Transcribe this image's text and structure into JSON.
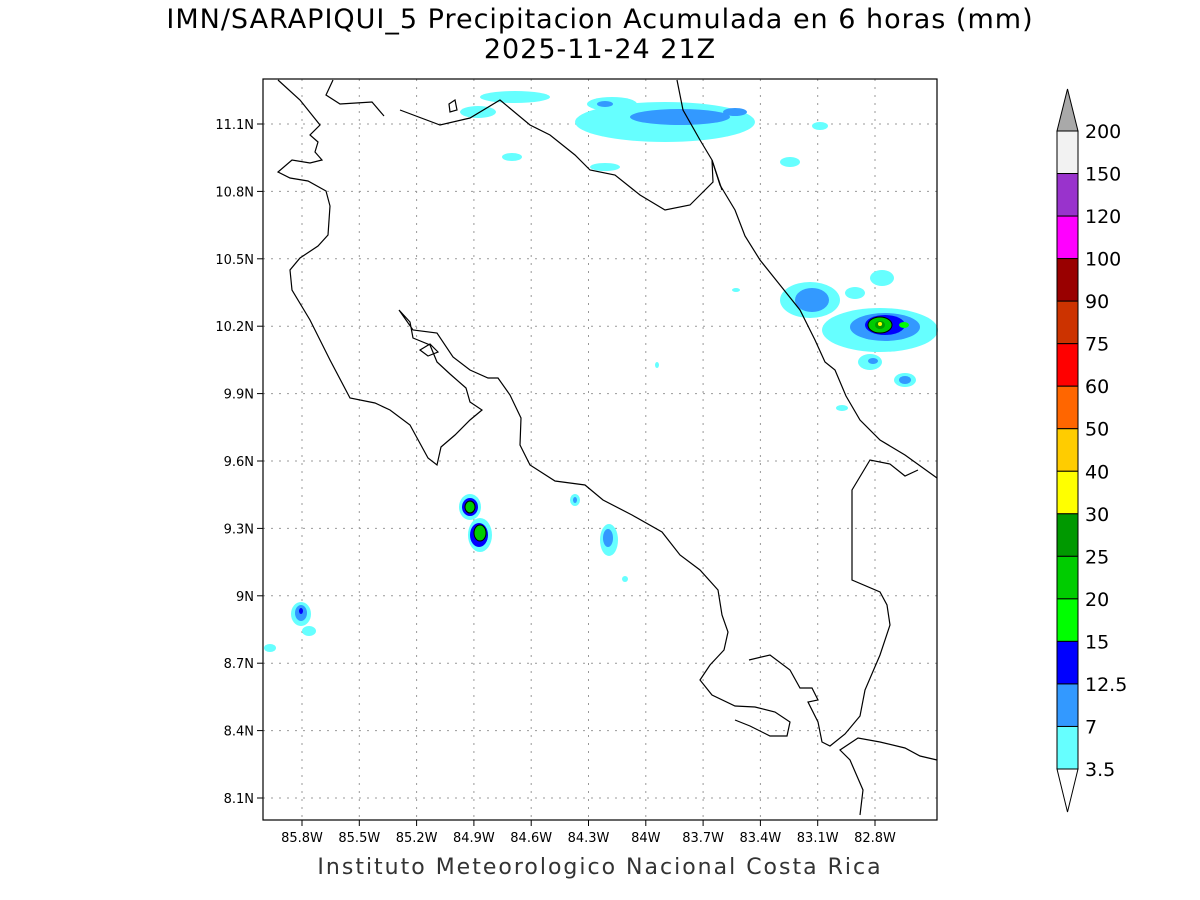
{
  "title": {
    "line1": "IMN/SARAPIQUI_5 Precipitacion Acumulada en 6 horas (mm)",
    "line2": "2025-11-24 21Z"
  },
  "footer": "Instituto Meteorologico Nacional Costa Rica",
  "axes": {
    "lon_ticks": [
      "85.8W",
      "85.5W",
      "85.2W",
      "84.9W",
      "84.6W",
      "84.3W",
      "84W",
      "83.7W",
      "83.4W",
      "83.1W",
      "82.8W"
    ],
    "lat_ticks": [
      "11.1N",
      "10.8N",
      "10.5N",
      "10.2N",
      "9.9N",
      "9.6N",
      "9.3N",
      "9N",
      "8.7N",
      "8.4N",
      "8.1N"
    ]
  },
  "colorbar": {
    "labels": [
      "200",
      "150",
      "120",
      "100",
      "90",
      "75",
      "60",
      "50",
      "40",
      "30",
      "25",
      "20",
      "15",
      "12.5",
      "7",
      "3.5"
    ],
    "over_color": "#a9a9a9",
    "under_color": "#ffffff",
    "colors": [
      "#f2f2f2",
      "#9933cc",
      "#ff00ff",
      "#990000",
      "#cc3300",
      "#ff0000",
      "#ff6600",
      "#ffcc00",
      "#ffff00",
      "#009900",
      "#00cc00",
      "#00ff00",
      "#0000ff",
      "#3399ff",
      "#66ffff"
    ]
  }
}
